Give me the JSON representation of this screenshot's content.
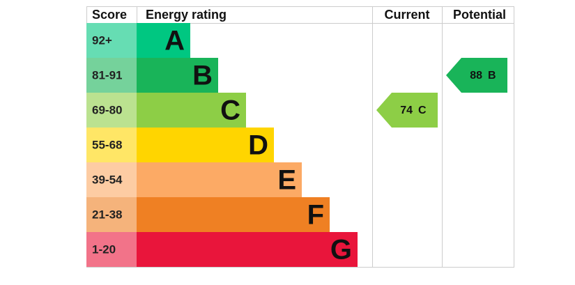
{
  "header": {
    "score": "Score",
    "energy_rating": "Energy rating",
    "current": "Current",
    "potential": "Potential"
  },
  "bands": [
    {
      "score": "92+",
      "letter": "A",
      "color": "#00c781"
    },
    {
      "score": "81-91",
      "letter": "B",
      "color": "#19b459"
    },
    {
      "score": "69-80",
      "letter": "C",
      "color": "#8dce46"
    },
    {
      "score": "55-68",
      "letter": "D",
      "color": "#ffd500"
    },
    {
      "score": "39-54",
      "letter": "E",
      "color": "#fcaa65"
    },
    {
      "score": "21-38",
      "letter": "F",
      "color": "#ef8023"
    },
    {
      "score": "1-20",
      "letter": "G",
      "color": "#e9153b"
    }
  ],
  "current": {
    "value": 74,
    "rating": "C"
  },
  "potential": {
    "value": 88,
    "rating": "B"
  }
}
